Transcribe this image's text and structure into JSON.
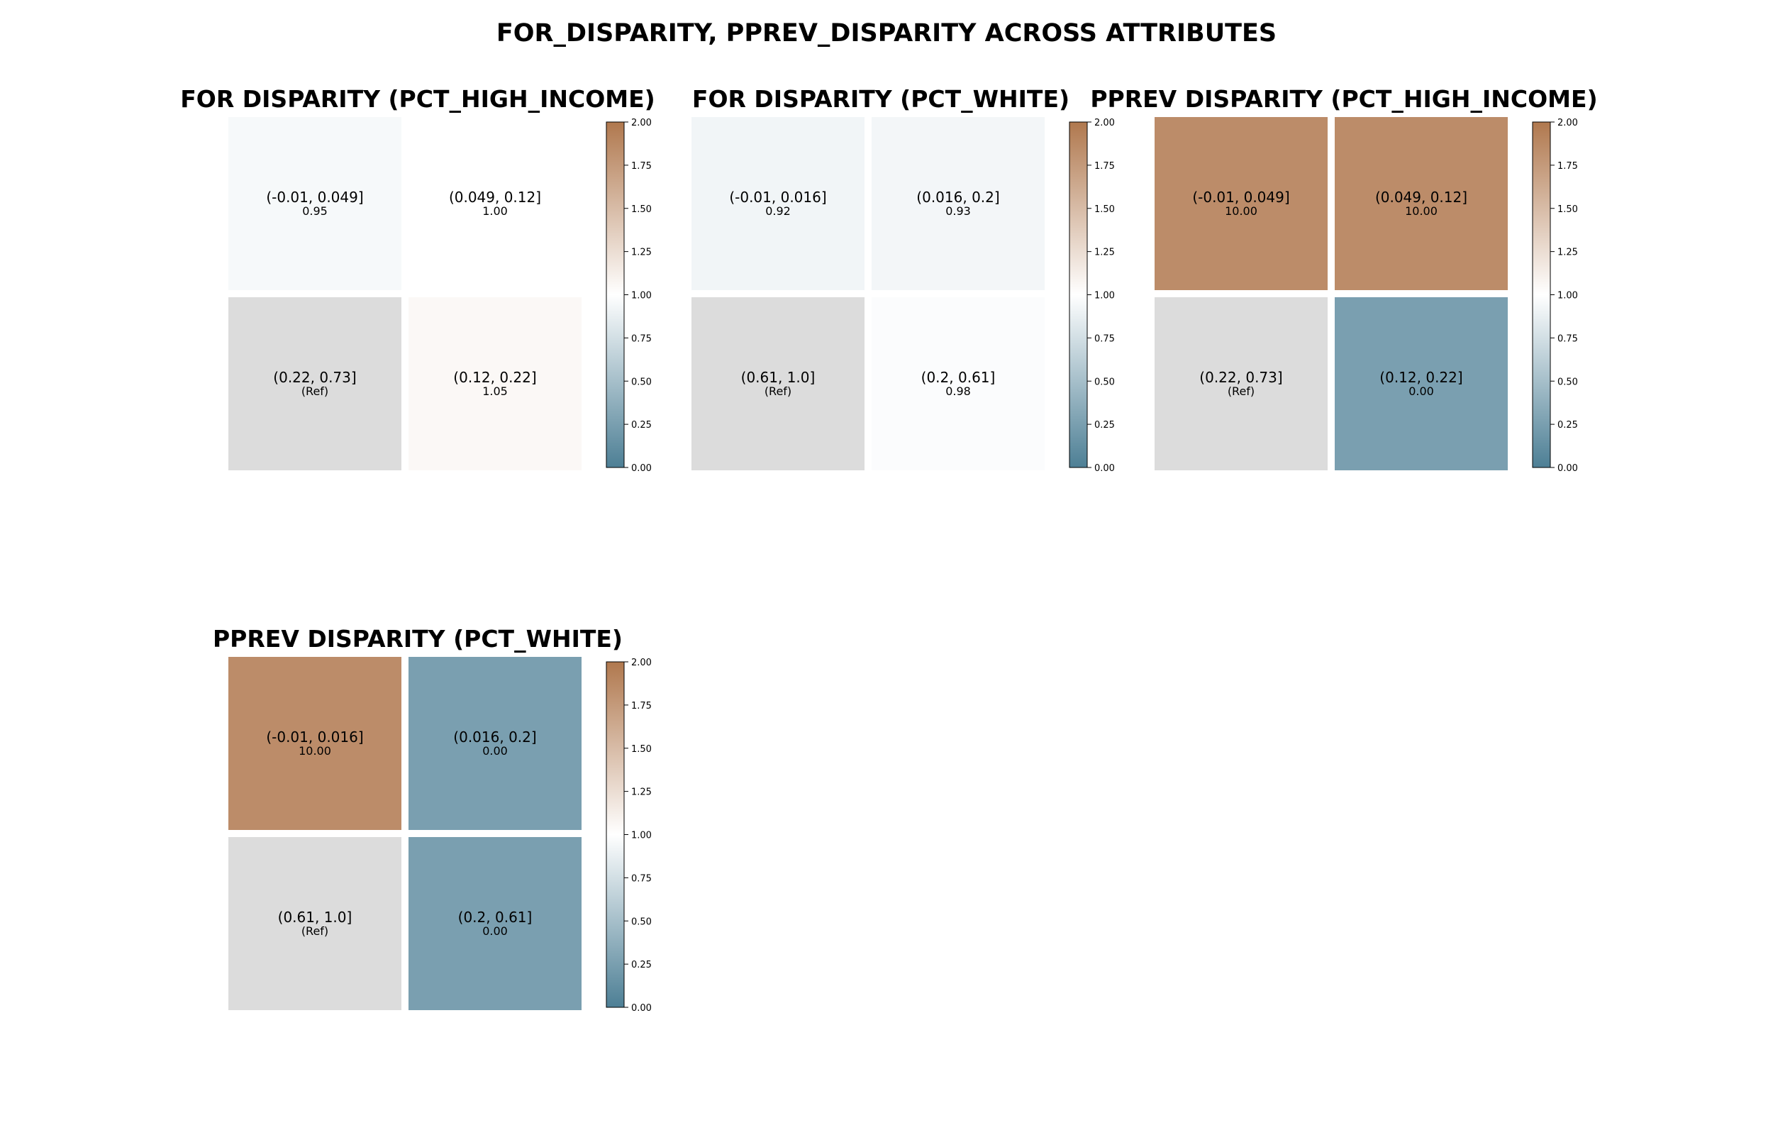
{
  "chart_data": {
    "type": "heatmap",
    "title": "FOR_DISPARITY, PPREV_DISPARITY ACROSS ATTRIBUTES",
    "colorbar": {
      "range": [
        0,
        2
      ],
      "ticks": [
        "0.00",
        "0.25",
        "0.50",
        "0.75",
        "1.00",
        "1.25",
        "1.50",
        "1.75",
        "2.00"
      ],
      "colors": {
        "low": "#4d7f95",
        "mid": "#ffffff",
        "high": "#b0784e",
        "reference": "#dcdcdc"
      }
    },
    "panels": [
      {
        "title": "FOR DISPARITY (PCT_HIGH_INCOME)",
        "cells": [
          {
            "label": "(-0.01, 0.049]",
            "value": 0.95,
            "display": "0.95",
            "ref": false
          },
          {
            "label": "(0.049, 0.12]",
            "value": 1.0,
            "display": "1.00",
            "ref": false
          },
          {
            "label": "(0.22, 0.73]",
            "value": null,
            "display": "(Ref)",
            "ref": true
          },
          {
            "label": "(0.12, 0.22]",
            "value": 1.05,
            "display": "1.05",
            "ref": false
          }
        ]
      },
      {
        "title": "FOR DISPARITY (PCT_WHITE)",
        "cells": [
          {
            "label": "(-0.01, 0.016]",
            "value": 0.92,
            "display": "0.92",
            "ref": false
          },
          {
            "label": "(0.016, 0.2]",
            "value": 0.93,
            "display": "0.93",
            "ref": false
          },
          {
            "label": "(0.61, 1.0]",
            "value": null,
            "display": "(Ref)",
            "ref": true
          },
          {
            "label": "(0.2, 0.61]",
            "value": 0.98,
            "display": "0.98",
            "ref": false
          }
        ]
      },
      {
        "title": "PPREV DISPARITY (PCT_HIGH_INCOME)",
        "cells": [
          {
            "label": "(-0.01, 0.049]",
            "value": 10.0,
            "display": "10.00",
            "ref": false
          },
          {
            "label": "(0.049, 0.12]",
            "value": 10.0,
            "display": "10.00",
            "ref": false
          },
          {
            "label": "(0.22, 0.73]",
            "value": null,
            "display": "(Ref)",
            "ref": true
          },
          {
            "label": "(0.12, 0.22]",
            "value": 0.0,
            "display": "0.00",
            "ref": false
          }
        ]
      },
      {
        "title": "PPREV DISPARITY (PCT_WHITE)",
        "cells": [
          {
            "label": "(-0.01, 0.016]",
            "value": 10.0,
            "display": "10.00",
            "ref": false
          },
          {
            "label": "(0.016, 0.2]",
            "value": 0.0,
            "display": "0.00",
            "ref": false
          },
          {
            "label": "(0.61, 1.0]",
            "value": null,
            "display": "(Ref)",
            "ref": true
          },
          {
            "label": "(0.2, 0.61]",
            "value": 0.0,
            "display": "0.00",
            "ref": false
          }
        ]
      }
    ]
  }
}
